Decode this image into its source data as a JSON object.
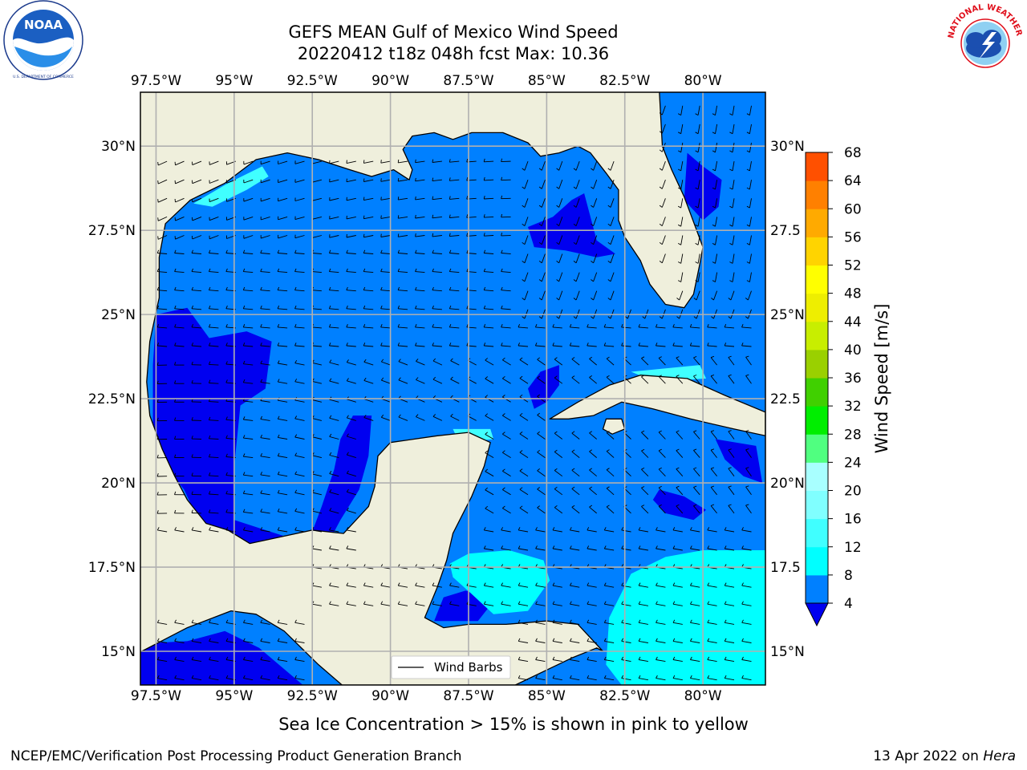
{
  "title": {
    "line1": "GEFS MEAN Gulf of Mexico Wind Speed",
    "line2": "20220412 t18z 048h fcst   Max: 10.36"
  },
  "logos": {
    "left": {
      "name": "NOAA",
      "ring_text": "NATIONAL OCEANIC AND ATMOSPHERIC ADMINISTRATION · U.S. DEPARTMENT OF COMMERCE"
    },
    "right": {
      "name": "NATIONAL WEATHER SERVICE"
    }
  },
  "axes": {
    "lon_labels": [
      "97.5°W",
      "95°W",
      "92.5°W",
      "90°W",
      "87.5°W",
      "85°W",
      "82.5°W",
      "80°W"
    ],
    "lon_values": [
      -97.5,
      -95,
      -92.5,
      -90,
      -87.5,
      -85,
      -82.5,
      -80
    ],
    "lat_labels_left": [
      "30°N",
      "27.5°N",
      "25°N",
      "22.5°N",
      "20°N",
      "17.5°N",
      "15°N"
    ],
    "lat_labels_right": [
      "30°N",
      "27.5",
      "25°N",
      "22.5",
      "20°N",
      "17.5",
      "15°N"
    ],
    "lat_values": [
      30,
      27.5,
      25,
      22.5,
      20,
      17.5,
      15
    ],
    "extent": {
      "lon_min": -98,
      "lon_max": -78,
      "lat_min": 14,
      "lat_max": 31.6
    },
    "gridlines": true
  },
  "legend": {
    "label": "Wind Barbs",
    "placement": "bottom-center"
  },
  "colorbar": {
    "label": "Wind Speed [m/s]",
    "ticks": [
      "68",
      "64",
      "60",
      "56",
      "52",
      "48",
      "44",
      "40",
      "36",
      "32",
      "28",
      "24",
      "20",
      "16",
      "12",
      "8",
      "4"
    ],
    "levels": [
      4,
      8,
      12,
      16,
      20,
      24,
      28,
      32,
      36,
      40,
      44,
      48,
      52,
      56,
      60,
      64,
      68
    ],
    "colors": [
      "#0080ff",
      "#00ffff",
      "#40ffff",
      "#80ffff",
      "#a8ffff",
      "#50ff80",
      "#00ee00",
      "#40d000",
      "#9ad000",
      "#c8ee00",
      "#eeee00",
      "#ffff00",
      "#ffd400",
      "#ffaa00",
      "#ff8000",
      "#ff5000",
      "#ff2800",
      "#ff0000"
    ],
    "under_color": "#0000f0",
    "extend": "min"
  },
  "chart_data": {
    "type": "map",
    "variable": "Wind Speed [m/s]",
    "max_value": 10.36,
    "land_color": "#efefdc",
    "sea_base_color": "#0080ff"
  },
  "caption": "Sea Ice Concentration > 15% is shown in pink to yellow",
  "footer": {
    "left": "NCEP/EMC/Verification Post Processing Product Generation Branch",
    "right_date": "13 Apr 2022 on ",
    "right_host": "Hera"
  }
}
